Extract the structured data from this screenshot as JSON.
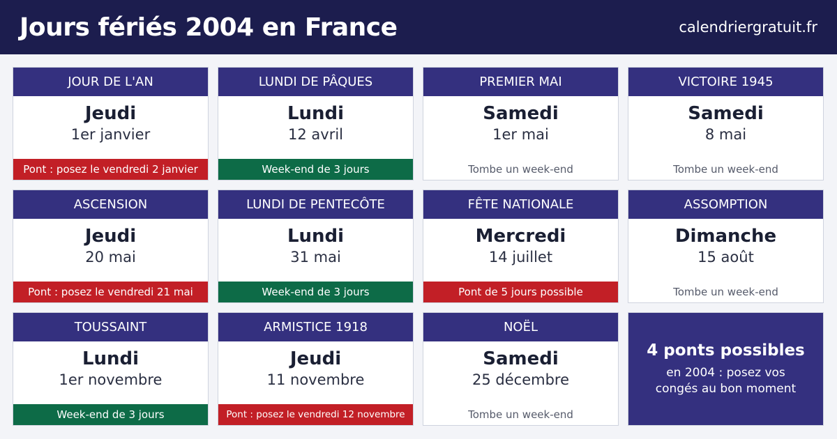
{
  "header": {
    "title": "Jours fériés 2004 en France",
    "site": "calendriergratuit.fr"
  },
  "colors": {
    "header_bg": "#1c1d4e",
    "card_title_bg": "#34307f",
    "pont_red": "#c21f26",
    "weekend_green": "#0d6b47"
  },
  "holidays": [
    {
      "name": "JOUR DE L'AN",
      "day": "Jeudi",
      "date": "1er janvier",
      "note": "Pont : posez le vendredi 2 janvier",
      "note_type": "red"
    },
    {
      "name": "LUNDI DE PÂQUES",
      "day": "Lundi",
      "date": "12 avril",
      "note": "Week-end de 3 jours",
      "note_type": "green"
    },
    {
      "name": "PREMIER MAI",
      "day": "Samedi",
      "date": "1er mai",
      "note": "Tombe un week-end",
      "note_type": "plain"
    },
    {
      "name": "VICTOIRE 1945",
      "day": "Samedi",
      "date": "8 mai",
      "note": "Tombe un week-end",
      "note_type": "plain"
    },
    {
      "name": "ASCENSION",
      "day": "Jeudi",
      "date": "20 mai",
      "note": "Pont : posez le vendredi 21 mai",
      "note_type": "red"
    },
    {
      "name": "LUNDI DE PENTECÔTE",
      "day": "Lundi",
      "date": "31 mai",
      "note": "Week-end de 3 jours",
      "note_type": "green"
    },
    {
      "name": "FÊTE NATIONALE",
      "day": "Mercredi",
      "date": "14 juillet",
      "note": "Pont de 5 jours possible",
      "note_type": "red"
    },
    {
      "name": "ASSOMPTION",
      "day": "Dimanche",
      "date": "15 août",
      "note": "Tombe un week-end",
      "note_type": "plain"
    },
    {
      "name": "TOUSSAINT",
      "day": "Lundi",
      "date": "1er novembre",
      "note": "Week-end de 3 jours",
      "note_type": "green"
    },
    {
      "name": "ARMISTICE 1918",
      "day": "Jeudi",
      "date": "11 novembre",
      "note": "Pont : posez le vendredi 12 novembre",
      "note_type": "red"
    },
    {
      "name": "NOËL",
      "day": "Samedi",
      "date": "25 décembre",
      "note": "Tombe un week-end",
      "note_type": "plain"
    }
  ],
  "summary": {
    "headline": "4 ponts possibles",
    "line1": "en 2004 : posez vos",
    "line2": "congés au bon moment"
  }
}
